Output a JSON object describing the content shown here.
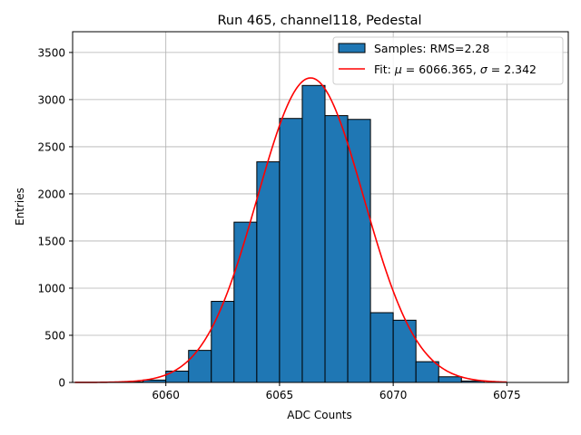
{
  "chart_data": {
    "type": "bar",
    "title": "Run 465, channel118, Pedestal",
    "xlabel": "ADC Counts",
    "ylabel": "Entries",
    "xlim": [
      6055.9,
      6077.7
    ],
    "ylim": [
      0,
      3720
    ],
    "xticks": [
      6060,
      6065,
      6070,
      6075
    ],
    "yticks": [
      0,
      500,
      1000,
      1500,
      2000,
      2500,
      3000,
      3500
    ],
    "grid": true,
    "legend_position": "top-right",
    "histogram": {
      "name": "Samples: RMS=2.28",
      "color": "#1f77b4",
      "edgecolor": "#000000",
      "bin_edges": [
        6058,
        6059,
        6060,
        6061,
        6062,
        6063,
        6064,
        6065,
        6066,
        6067,
        6068,
        6069,
        6070,
        6071,
        6072,
        6073,
        6074
      ],
      "counts": [
        5,
        25,
        120,
        340,
        860,
        1700,
        2340,
        2800,
        3150,
        2830,
        2790,
        740,
        660,
        220,
        60,
        15
      ]
    },
    "fit": {
      "name_prefix": "Fit: ",
      "mu_symbol": "μ",
      "mu_value": "6066.365",
      "sigma_symbol": "σ",
      "sigma_value": "2.342",
      "color": "#ff0000",
      "mu": 6066.365,
      "sigma": 2.342,
      "amplitude": 3230,
      "x_range": [
        6056,
        6075
      ]
    }
  }
}
